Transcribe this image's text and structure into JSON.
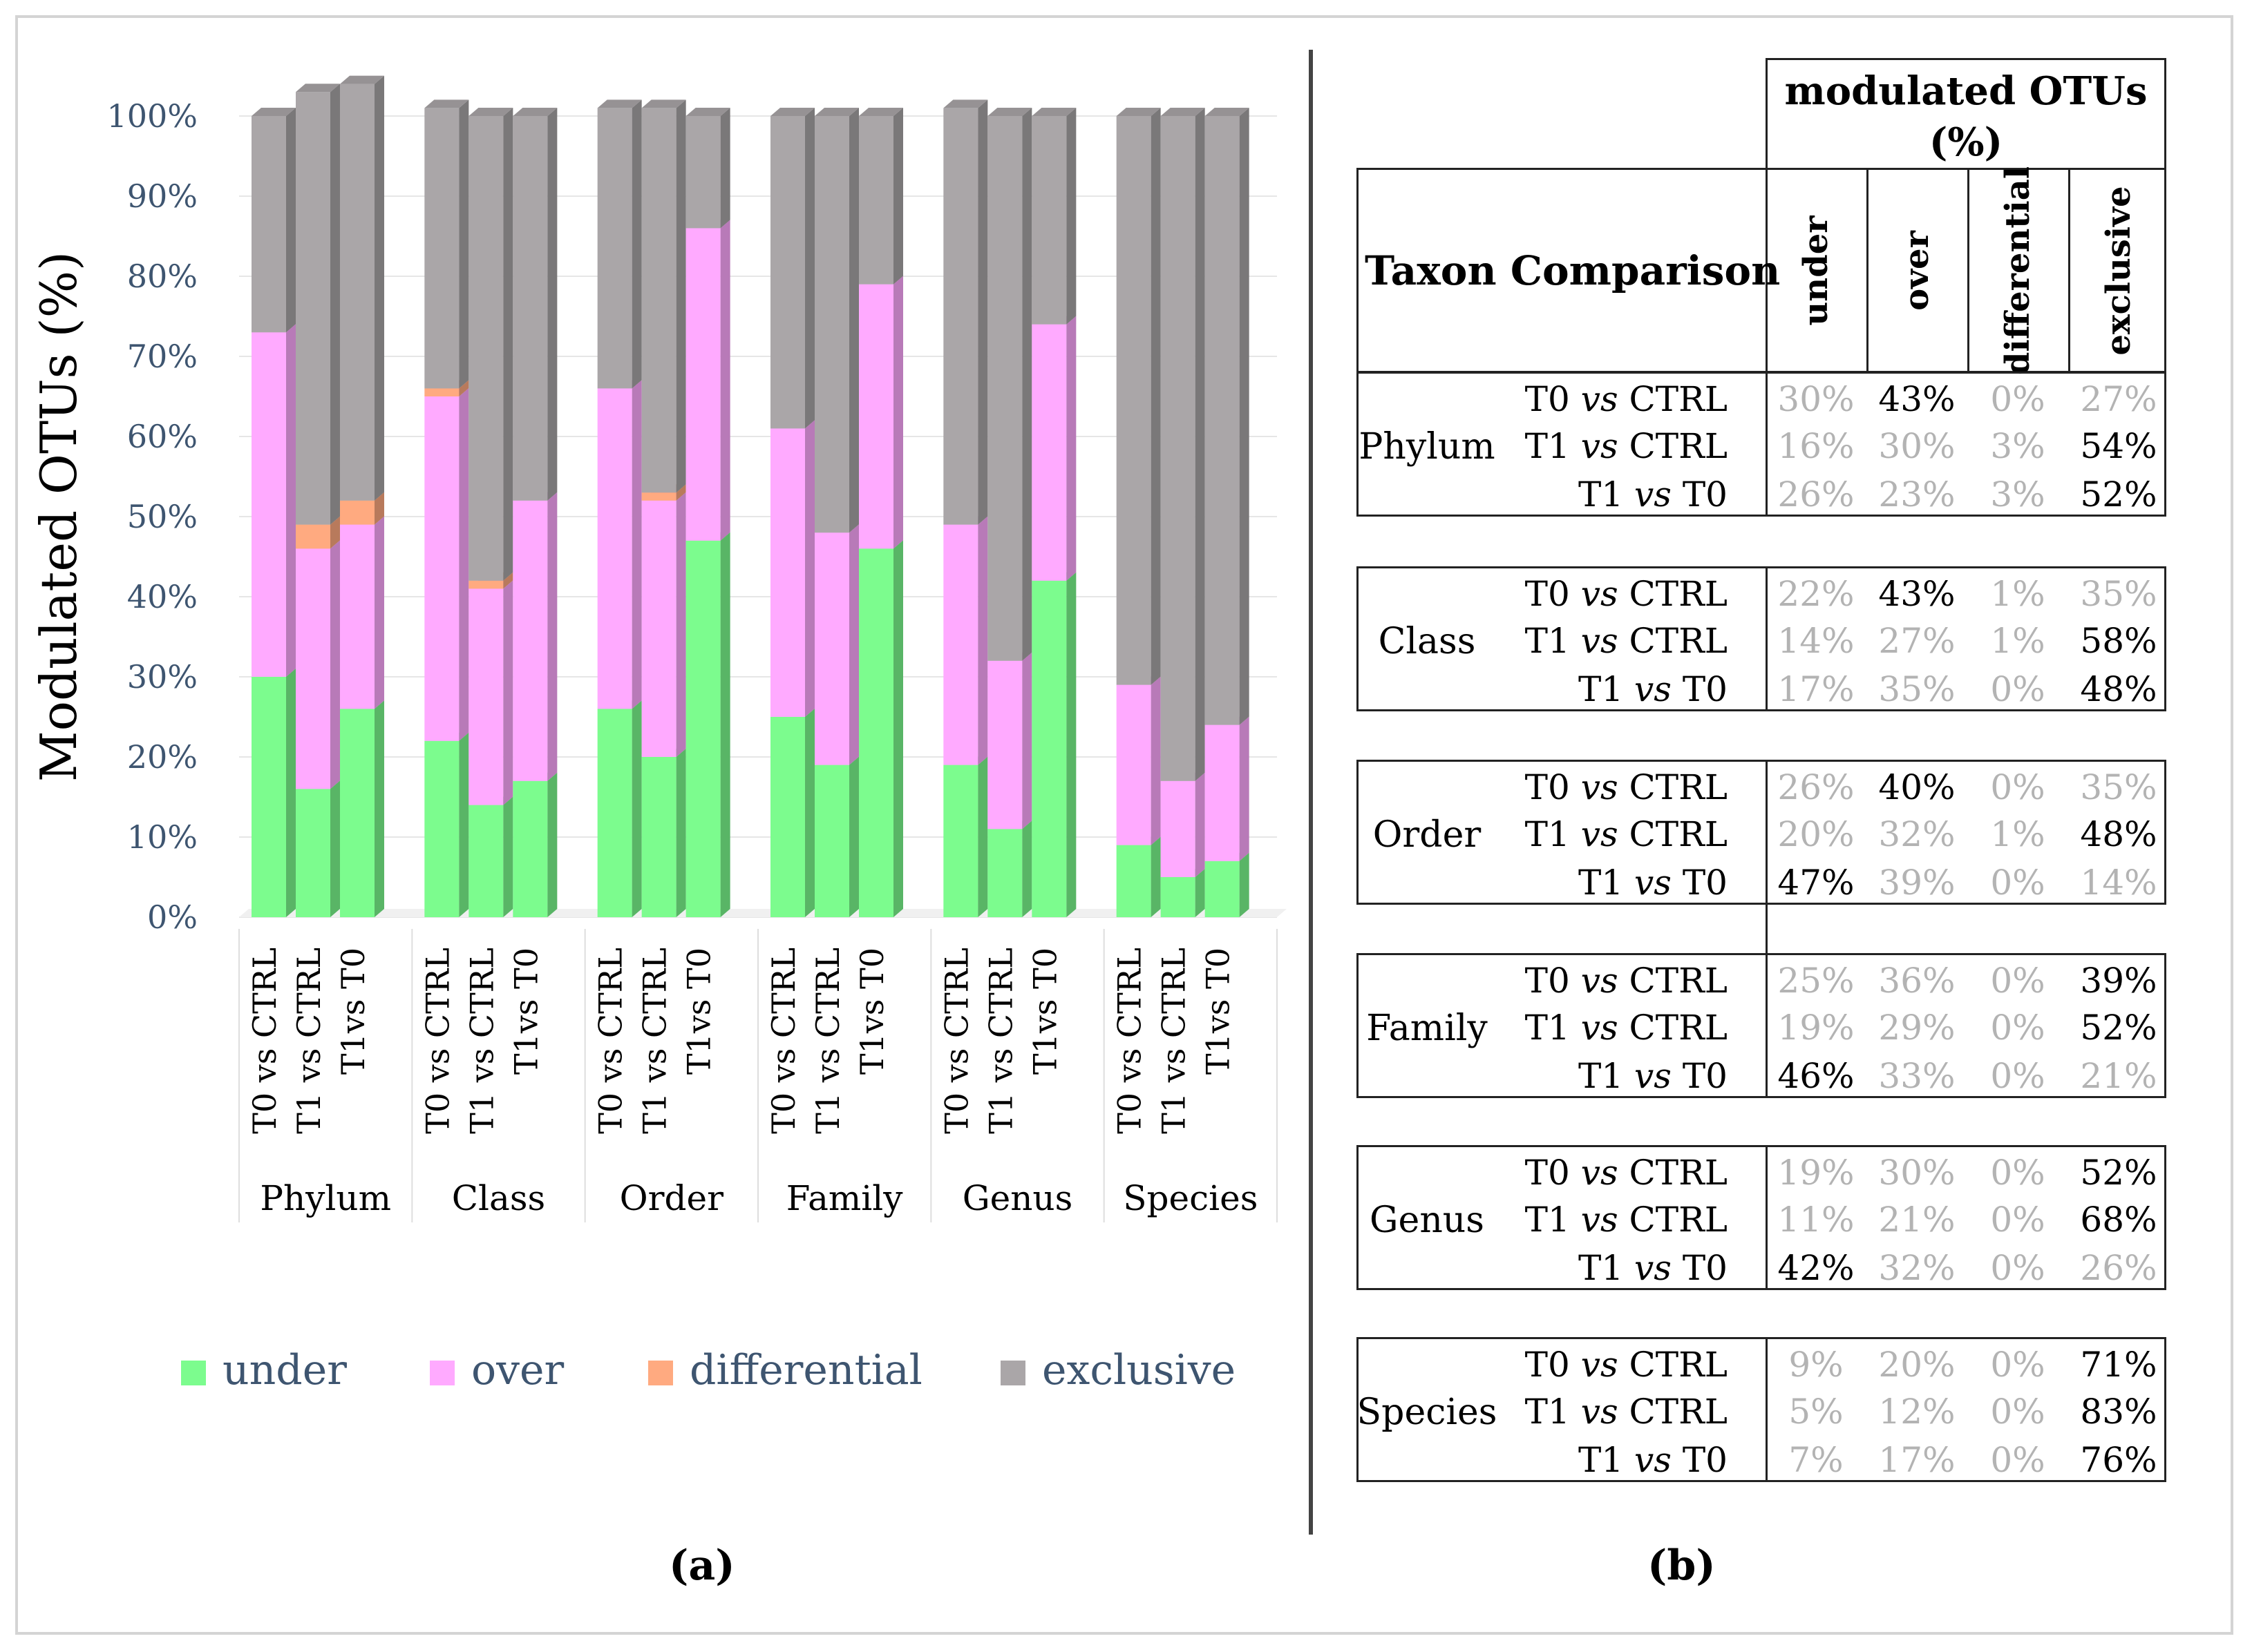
{
  "panel_a_label": "(a)",
  "panel_b_label": "(b)",
  "chart_data": {
    "type": "bar",
    "stacked": true,
    "title": "",
    "ylabel": "Modulated OTUs (%)",
    "xlabel": "",
    "ylim": [
      0,
      100
    ],
    "yticks": [
      "0%",
      "10%",
      "20%",
      "30%",
      "40%",
      "50%",
      "60%",
      "70%",
      "80%",
      "90%",
      "100%"
    ],
    "grid": true,
    "legend_position": "bottom",
    "groups": [
      "Phylum",
      "Class",
      "Order",
      "Family",
      "Genus",
      "Species"
    ],
    "categories": [
      "T0 vs CTRL",
      "T1 vs CTRL",
      "T1vs T0"
    ],
    "series": [
      {
        "name": "under",
        "color": "#7cfc8e",
        "values": [
          [
            30,
            16,
            26
          ],
          [
            22,
            14,
            17
          ],
          [
            26,
            20,
            47
          ],
          [
            25,
            19,
            46
          ],
          [
            19,
            11,
            42
          ],
          [
            9,
            5,
            7
          ]
        ]
      },
      {
        "name": "over",
        "color": "#ffaaff",
        "values": [
          [
            43,
            30,
            23
          ],
          [
            43,
            27,
            35
          ],
          [
            40,
            32,
            39
          ],
          [
            36,
            29,
            33
          ],
          [
            30,
            21,
            32
          ],
          [
            20,
            12,
            17
          ]
        ]
      },
      {
        "name": "differential",
        "color": "#ffaa80",
        "values": [
          [
            0,
            3,
            3
          ],
          [
            1,
            1,
            0
          ],
          [
            0,
            1,
            0
          ],
          [
            0,
            0,
            0
          ],
          [
            0,
            0,
            0
          ],
          [
            0,
            0,
            0
          ]
        ]
      },
      {
        "name": "exclusive",
        "color": "#aaa6a8",
        "values": [
          [
            27,
            54,
            52
          ],
          [
            35,
            58,
            48
          ],
          [
            35,
            48,
            14
          ],
          [
            39,
            52,
            21
          ],
          [
            52,
            68,
            26
          ],
          [
            71,
            83,
            76
          ]
        ]
      }
    ]
  },
  "table": {
    "header_top": "modulated OTUs (%)",
    "header_left": "Taxon Comparison",
    "columns": [
      "under",
      "over",
      "differential",
      "exclusive"
    ],
    "groups": [
      {
        "taxon": "Phylum",
        "rows": [
          {
            "cmp_a": "T0",
            "cmp_vs": "vs",
            "cmp_b": "CTRL",
            "vals": [
              "30%",
              "43%",
              "0%",
              "27%"
            ],
            "bold": [
              false,
              true,
              false,
              false
            ]
          },
          {
            "cmp_a": "T1",
            "cmp_vs": "vs",
            "cmp_b": "CTRL",
            "vals": [
              "16%",
              "30%",
              "3%",
              "54%"
            ],
            "bold": [
              false,
              false,
              false,
              true
            ]
          },
          {
            "cmp_a": "T1",
            "cmp_vs": "vs",
            "cmp_b": "T0",
            "vals": [
              "26%",
              "23%",
              "3%",
              "52%"
            ],
            "bold": [
              false,
              false,
              false,
              true
            ]
          }
        ]
      },
      {
        "taxon": "Class",
        "rows": [
          {
            "cmp_a": "T0",
            "cmp_vs": "vs",
            "cmp_b": "CTRL",
            "vals": [
              "22%",
              "43%",
              "1%",
              "35%"
            ],
            "bold": [
              false,
              true,
              false,
              false
            ]
          },
          {
            "cmp_a": "T1",
            "cmp_vs": "vs",
            "cmp_b": "CTRL",
            "vals": [
              "14%",
              "27%",
              "1%",
              "58%"
            ],
            "bold": [
              false,
              false,
              false,
              true
            ]
          },
          {
            "cmp_a": "T1",
            "cmp_vs": "vs",
            "cmp_b": "T0",
            "vals": [
              "17%",
              "35%",
              "0%",
              "48%"
            ],
            "bold": [
              false,
              false,
              false,
              true
            ]
          }
        ]
      },
      {
        "taxon": "Order",
        "rows": [
          {
            "cmp_a": "T0",
            "cmp_vs": "vs",
            "cmp_b": "CTRL",
            "vals": [
              "26%",
              "40%",
              "0%",
              "35%"
            ],
            "bold": [
              false,
              true,
              false,
              false
            ]
          },
          {
            "cmp_a": "T1",
            "cmp_vs": "vs",
            "cmp_b": "CTRL",
            "vals": [
              "20%",
              "32%",
              "1%",
              "48%"
            ],
            "bold": [
              false,
              false,
              false,
              true
            ]
          },
          {
            "cmp_a": "T1",
            "cmp_vs": "vs",
            "cmp_b": "T0",
            "vals": [
              "47%",
              "39%",
              "0%",
              "14%"
            ],
            "bold": [
              true,
              false,
              false,
              false
            ]
          }
        ]
      },
      {
        "taxon": "Family",
        "rows": [
          {
            "cmp_a": "T0",
            "cmp_vs": "vs",
            "cmp_b": "CTRL",
            "vals": [
              "25%",
              "36%",
              "0%",
              "39%"
            ],
            "bold": [
              false,
              false,
              false,
              true
            ]
          },
          {
            "cmp_a": "T1",
            "cmp_vs": "vs",
            "cmp_b": "CTRL",
            "vals": [
              "19%",
              "29%",
              "0%",
              "52%"
            ],
            "bold": [
              false,
              false,
              false,
              true
            ]
          },
          {
            "cmp_a": "T1",
            "cmp_vs": "vs",
            "cmp_b": "T0",
            "vals": [
              "46%",
              "33%",
              "0%",
              "21%"
            ],
            "bold": [
              true,
              false,
              false,
              false
            ]
          }
        ]
      },
      {
        "taxon": "Genus",
        "rows": [
          {
            "cmp_a": "T0",
            "cmp_vs": "vs",
            "cmp_b": "CTRL",
            "vals": [
              "19%",
              "30%",
              "0%",
              "52%"
            ],
            "bold": [
              false,
              false,
              false,
              true
            ]
          },
          {
            "cmp_a": "T1",
            "cmp_vs": "vs",
            "cmp_b": "CTRL",
            "vals": [
              "11%",
              "21%",
              "0%",
              "68%"
            ],
            "bold": [
              false,
              false,
              false,
              true
            ]
          },
          {
            "cmp_a": "T1",
            "cmp_vs": "vs",
            "cmp_b": "T0",
            "vals": [
              "42%",
              "32%",
              "0%",
              "26%"
            ],
            "bold": [
              true,
              false,
              false,
              false
            ]
          }
        ]
      },
      {
        "taxon": "Species",
        "rows": [
          {
            "cmp_a": "T0",
            "cmp_vs": "vs",
            "cmp_b": "CTRL",
            "vals": [
              "9%",
              "20%",
              "0%",
              "71%"
            ],
            "bold": [
              false,
              false,
              false,
              true
            ]
          },
          {
            "cmp_a": "T1",
            "cmp_vs": "vs",
            "cmp_b": "CTRL",
            "vals": [
              "5%",
              "12%",
              "0%",
              "83%"
            ],
            "bold": [
              false,
              false,
              false,
              true
            ]
          },
          {
            "cmp_a": "T1",
            "cmp_vs": "vs",
            "cmp_b": "T0",
            "vals": [
              "7%",
              "17%",
              "0%",
              "76%"
            ],
            "bold": [
              false,
              false,
              false,
              true
            ]
          }
        ]
      }
    ]
  }
}
